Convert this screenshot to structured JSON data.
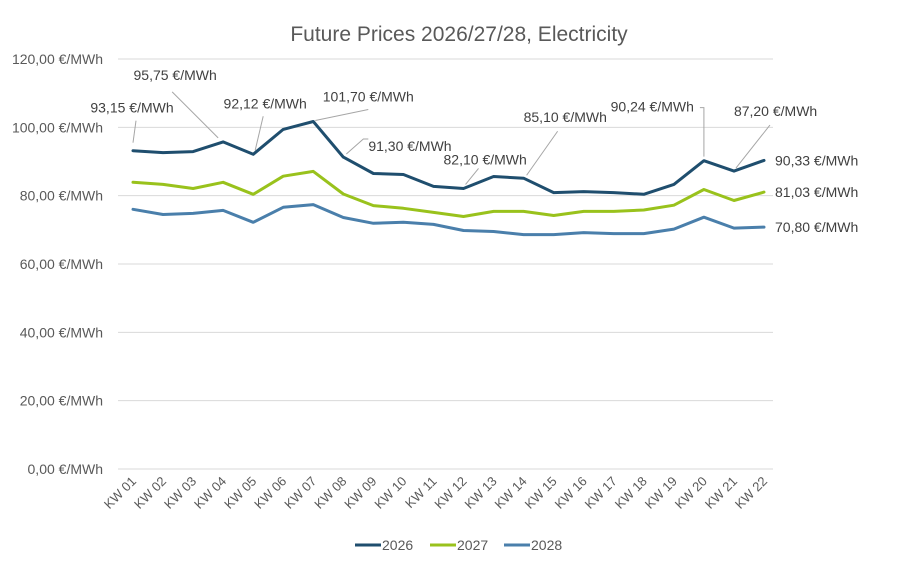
{
  "chart_data": {
    "type": "line",
    "title": "Future Prices 2026/27/28, Electricity",
    "xlabel": "",
    "ylabel": "",
    "ylim": [
      0,
      120
    ],
    "yticks": [
      0,
      20,
      40,
      60,
      80,
      100,
      120
    ],
    "ytick_labels": [
      "0,00 €/MWh",
      "20,00 €/MWh",
      "40,00 €/MWh",
      "60,00 €/MWh",
      "80,00 €/MWh",
      "100,00 €/MWh",
      "120,00 €/MWh"
    ],
    "grid": true,
    "legend_position": "bottom",
    "categories": [
      "KW 01",
      "KW 02",
      "KW 03",
      "KW 04",
      "KW 05",
      "KW 06",
      "KW 07",
      "KW 08",
      "KW 09",
      "KW 10",
      "KW 11",
      "KW 12",
      "KW 13",
      "KW 14",
      "KW 15",
      "KW 16",
      "KW 17",
      "KW 18",
      "KW 19",
      "KW 20",
      "KW 21",
      "KW 22"
    ],
    "series": [
      {
        "name": "2026",
        "color": "#1f4e6e",
        "values": [
          93.15,
          92.6,
          92.9,
          95.75,
          92.12,
          99.4,
          101.7,
          91.3,
          86.5,
          86.2,
          82.7,
          82.1,
          85.6,
          85.1,
          80.9,
          81.2,
          80.9,
          80.4,
          83.3,
          90.24,
          87.2,
          90.33
        ]
      },
      {
        "name": "2027",
        "color": "#99c21c",
        "values": [
          83.9,
          83.3,
          82.1,
          83.9,
          80.4,
          85.7,
          87.1,
          80.5,
          77.1,
          76.3,
          75.1,
          73.9,
          75.4,
          75.4,
          74.2,
          75.4,
          75.4,
          75.8,
          77.2,
          81.8,
          78.6,
          81.03
        ]
      },
      {
        "name": "2028",
        "color": "#4a7fab",
        "values": [
          76.0,
          74.5,
          74.8,
          75.7,
          72.2,
          76.6,
          77.4,
          73.6,
          71.9,
          72.2,
          71.6,
          69.8,
          69.5,
          68.6,
          68.6,
          69.2,
          68.9,
          68.9,
          70.2,
          73.7,
          70.5,
          70.8
        ]
      }
    ],
    "annotations": [
      {
        "series": "2026",
        "index": 0,
        "text": "93,15 €/MWh"
      },
      {
        "series": "2026",
        "index": 3,
        "text": "95,75 €/MWh"
      },
      {
        "series": "2026",
        "index": 4,
        "text": "92,12 €/MWh"
      },
      {
        "series": "2026",
        "index": 6,
        "text": "101,70 €/MWh"
      },
      {
        "series": "2026",
        "index": 7,
        "text": "91,30 €/MWh"
      },
      {
        "series": "2026",
        "index": 11,
        "text": "82,10 €/MWh"
      },
      {
        "series": "2026",
        "index": 13,
        "text": "85,10 €/MWh"
      },
      {
        "series": "2026",
        "index": 19,
        "text": "90,24 €/MWh"
      },
      {
        "series": "2026",
        "index": 20,
        "text": "87,20 €/MWh"
      },
      {
        "series": "2026",
        "index": 21,
        "text": "90,33 €/MWh"
      },
      {
        "series": "2027",
        "index": 21,
        "text": "81,03 €/MWh"
      },
      {
        "series": "2028",
        "index": 21,
        "text": "70,80 €/MWh"
      }
    ]
  }
}
